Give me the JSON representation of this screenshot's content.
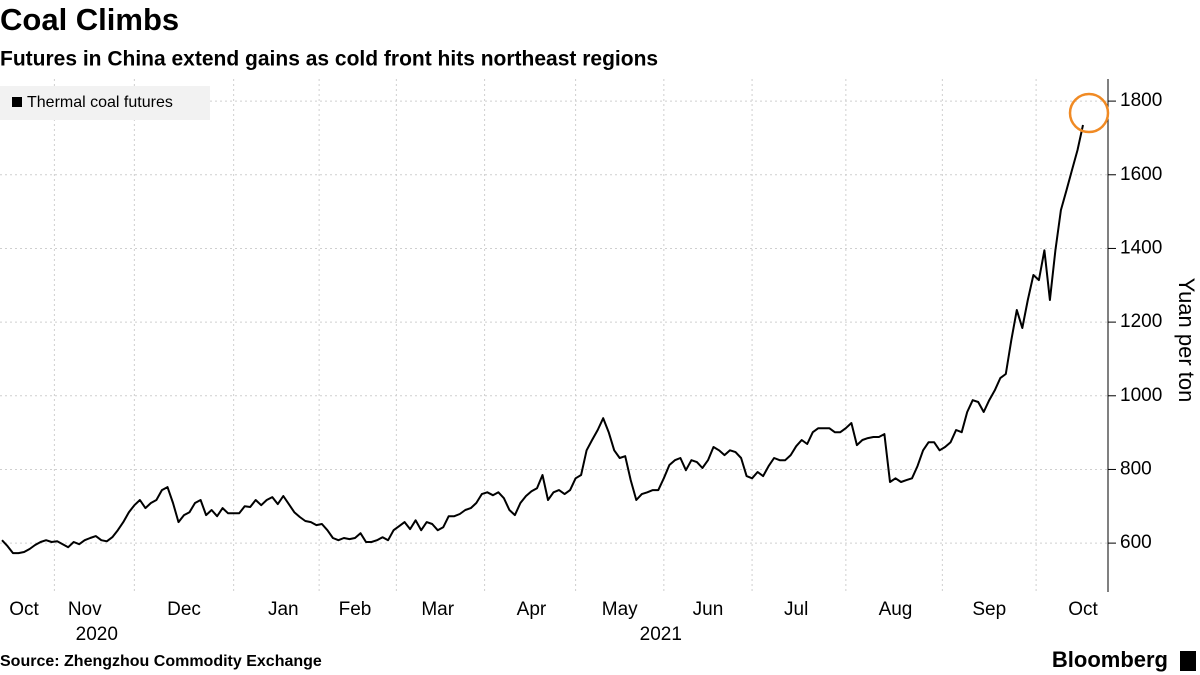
{
  "chart_data": {
    "type": "line",
    "title": "Coal Climbs",
    "subtitle": "Futures in China extend gains as cold front hits northeast regions",
    "y_axis_label": "Yuan per ton",
    "source": "Source: Zhengzhou Commodity Exchange",
    "brand": "Bloomberg",
    "years": [
      "2020",
      "2021"
    ],
    "categories": [
      null,
      null,
      null,
      null,
      "Oct",
      null,
      null,
      null,
      null,
      null,
      null,
      null,
      null,
      null,
      null,
      "Nov",
      null,
      null,
      null,
      null,
      null,
      null,
      null,
      null,
      null,
      null,
      null,
      null,
      null,
      null,
      null,
      null,
      null,
      "Dec",
      null,
      null,
      null,
      null,
      null,
      null,
      null,
      null,
      null,
      null,
      null,
      null,
      null,
      null,
      null,
      null,
      null,
      "Jan",
      null,
      null,
      null,
      null,
      null,
      null,
      null,
      null,
      null,
      null,
      null,
      null,
      "Feb",
      null,
      null,
      null,
      null,
      null,
      null,
      null,
      null,
      null,
      null,
      null,
      null,
      null,
      null,
      "Mar",
      null,
      null,
      null,
      null,
      null,
      null,
      null,
      null,
      null,
      null,
      null,
      null,
      null,
      null,
      null,
      null,
      "Apr",
      null,
      null,
      null,
      null,
      null,
      null,
      null,
      null,
      null,
      null,
      null,
      null,
      null,
      null,
      null,
      "May",
      null,
      null,
      null,
      null,
      null,
      null,
      null,
      null,
      null,
      null,
      null,
      null,
      null,
      null,
      null,
      "Jun",
      null,
      null,
      null,
      null,
      null,
      null,
      null,
      null,
      null,
      null,
      null,
      null,
      null,
      null,
      null,
      "Jul",
      null,
      null,
      null,
      null,
      null,
      null,
      null,
      null,
      null,
      null,
      null,
      null,
      null,
      null,
      null,
      null,
      null,
      "Aug",
      null,
      null,
      null,
      null,
      null,
      null,
      null,
      null,
      null,
      null,
      null,
      null,
      null,
      null,
      null,
      null,
      "Sep",
      null,
      null,
      null,
      null,
      null,
      null,
      null,
      null,
      null,
      null,
      null,
      null,
      null,
      null,
      null,
      null,
      "Oct"
    ],
    "series": [
      {
        "name": "Thermal coal futures",
        "color": "#000000",
        "values": [
          608,
          592,
          573,
          573,
          576,
          584,
          595,
          603,
          608,
          603,
          605,
          597,
          589,
          603,
          597,
          608,
          614,
          619,
          608,
          605,
          616,
          635,
          657,
          684,
          703,
          717,
          695,
          709,
          717,
          744,
          752,
          709,
          657,
          676,
          684,
          709,
          717,
          676,
          690,
          673,
          695,
          681,
          681,
          681,
          700,
          698,
          717,
          703,
          717,
          725,
          706,
          728,
          706,
          684,
          671,
          660,
          657,
          649,
          652,
          635,
          614,
          608,
          614,
          611,
          614,
          627,
          603,
          603,
          608,
          616,
          608,
          635,
          646,
          657,
          638,
          662,
          635,
          657,
          652,
          635,
          643,
          673,
          673,
          679,
          690,
          695,
          709,
          733,
          738,
          730,
          738,
          722,
          690,
          676,
          709,
          728,
          741,
          749,
          785,
          717,
          738,
          744,
          733,
          744,
          776,
          785,
          852,
          880,
          907,
          939,
          901,
          852,
          831,
          836,
          771,
          717,
          733,
          738,
          744,
          744,
          776,
          812,
          825,
          831,
          798,
          825,
          820,
          804,
          825,
          861,
          852,
          839,
          852,
          847,
          831,
          782,
          776,
          793,
          782,
          809,
          831,
          825,
          825,
          839,
          863,
          880,
          869,
          901,
          912,
          912,
          912,
          901,
          901,
          912,
          926,
          866,
          880,
          885,
          888,
          888,
          896,
          766,
          776,
          766,
          771,
          776,
          809,
          852,
          874,
          874,
          852,
          861,
          874,
          907,
          901,
          956,
          988,
          983,
          956,
          988,
          1015,
          1048,
          1059,
          1151,
          1233,
          1184,
          1260,
          1328,
          1314,
          1395,
          1260,
          1395,
          1504,
          1558,
          1613,
          1667,
          1735
        ]
      }
    ],
    "ylim": [
      470,
      1860
    ],
    "yticks": [
      600,
      800,
      1000,
      1200,
      1400,
      1600,
      1800
    ],
    "grid": true,
    "legend": "top-left",
    "highlight_color": "#f08a24"
  }
}
